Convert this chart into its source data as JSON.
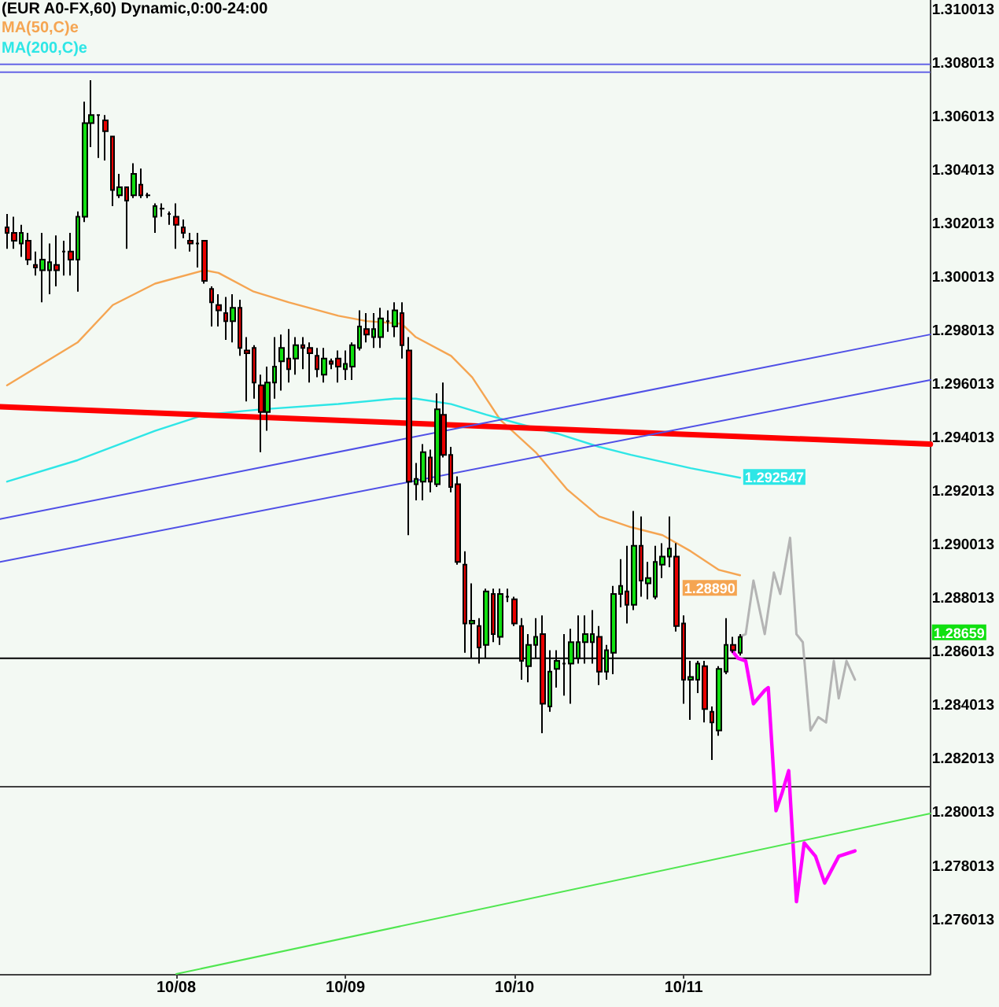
{
  "chart_data": {
    "type": "candlestick",
    "title": "(EUR A0-FX,60) Dynamic,0:00-24:00",
    "legend": "top left",
    "marker": "none",
    "x": [
      "--10-07T00:00",
      "--10-07T01:00",
      "--10-07T02:00",
      "--10-07T03:00",
      "--10-07T04:00",
      "--10-07T05:00",
      "--10-07T06:00",
      "--10-07T07:00",
      "--10-07T08:00",
      "--10-07T09:00",
      "--10-07T10:00",
      "--10-07T11:00",
      "--10-07T12:00",
      "--10-07T13:00",
      "--10-07T14:00",
      "--10-07T15:00",
      "--10-07T16:00",
      "--10-07T17:00",
      "--10-07T18:00",
      "--10-07T19:00",
      "--10-07T20:00",
      "--10-07T21:00",
      "--10-07T22:00",
      "--10-07T23:00",
      "--10-08T00:00",
      "--10-08T01:00",
      "--10-08T02:00",
      "--10-08T03:00",
      "--10-08T04:00",
      "--10-08T05:00",
      "--10-08T06:00",
      "--10-08T07:00",
      "--10-08T08:00",
      "--10-08T09:00",
      "--10-08T10:00",
      "--10-08T11:00",
      "--10-08T12:00",
      "--10-08T13:00",
      "--10-08T14:00",
      "--10-08T15:00",
      "--10-08T16:00",
      "--10-08T17:00",
      "--10-08T18:00",
      "--10-08T19:00",
      "--10-08T20:00",
      "--10-08T21:00",
      "--10-08T22:00",
      "--10-08T23:00",
      "--10-09T00:00",
      "--10-09T01:00",
      "--10-09T02:00",
      "--10-09T03:00",
      "--10-09T04:00",
      "--10-09T05:00",
      "--10-09T06:00",
      "--10-09T07:00",
      "--10-09T08:00",
      "--10-09T09:00",
      "--10-09T10:00",
      "--10-09T11:00",
      "--10-09T12:00",
      "--10-09T13:00",
      "--10-09T14:00",
      "--10-09T15:00",
      "--10-09T16:00",
      "--10-09T17:00",
      "--10-09T18:00",
      "--10-09T19:00",
      "--10-09T20:00",
      "--10-09T21:00",
      "--10-09T22:00",
      "--10-09T23:00",
      "--10-10T00:00",
      "--10-10T01:00",
      "--10-10T02:00",
      "--10-10T03:00",
      "--10-10T04:00",
      "--10-10T05:00",
      "--10-10T06:00",
      "--10-10T07:00",
      "--10-10T08:00",
      "--10-10T09:00",
      "--10-10T10:00",
      "--10-10T11:00",
      "--10-10T12:00",
      "--10-10T13:00",
      "--10-10T14:00",
      "--10-10T15:00",
      "--10-10T16:00",
      "--10-10T17:00",
      "--10-10T18:00",
      "--10-10T19:00",
      "--10-10T20:00",
      "--10-10T21:00",
      "--10-10T22:00",
      "--10-10T23:00",
      "--10-11T00:00",
      "--10-11T01:00",
      "--10-11T02:00",
      "--10-11T03:00",
      "--10-11T04:00",
      "--10-11T05:00",
      "--10-11T06:00",
      "--10-11T07:00",
      "--10-11T08:00"
    ],
    "ohlc": [
      [
        1.3019,
        1.3024,
        1.3011,
        1.3017
      ],
      [
        1.3017,
        1.3023,
        1.3011,
        1.3014
      ],
      [
        1.3013,
        1.302,
        1.3008,
        1.3017
      ],
      [
        1.3014,
        1.3017,
        1.3005,
        1.3007
      ],
      [
        1.3005,
        1.301,
        1.3001,
        1.3004
      ],
      [
        1.3003,
        1.3017,
        1.2991,
        1.3007
      ],
      [
        1.3003,
        1.3013,
        1.2994,
        1.3006
      ],
      [
        1.3005,
        1.3016,
        1.2997,
        1.3003
      ],
      [
        1.301,
        1.3014,
        1.3001,
        1.301
      ],
      [
        1.301,
        1.3017,
        1.3001,
        1.3007
      ],
      [
        1.3007,
        1.3025,
        1.2995,
        1.3023
      ],
      [
        1.3023,
        1.3066,
        1.3021,
        1.3058
      ],
      [
        1.3058,
        1.3074,
        1.3049,
        1.3061
      ],
      [
        1.3061,
        1.3061,
        1.3045,
        1.3061
      ],
      [
        1.3059,
        1.3061,
        1.3044,
        1.3055
      ],
      [
        1.3053,
        1.3053,
        1.3027,
        1.3033
      ],
      [
        1.3031,
        1.3039,
        1.303,
        1.3034
      ],
      [
        1.3034,
        1.3034,
        1.3011,
        1.3029
      ],
      [
        1.3031,
        1.3043,
        1.303,
        1.3039
      ],
      [
        1.3035,
        1.3041,
        1.303,
        1.3031
      ],
      [
        1.3031,
        1.3032,
        1.303,
        1.3031
      ],
      [
        1.3023,
        1.3028,
        1.3017,
        1.3027
      ],
      [
        1.3026,
        1.3028,
        1.3023,
        1.3026
      ],
      [
        1.3024,
        1.3025,
        1.302,
        1.3024
      ],
      [
        1.3023,
        1.3028,
        1.3011,
        1.302
      ],
      [
        1.3019,
        1.3022,
        1.3015,
        1.3017
      ],
      [
        1.3014,
        1.3017,
        1.301,
        1.3013
      ],
      [
        1.3013,
        1.3017,
        1.3004,
        1.3013
      ],
      [
        1.3014,
        1.3014,
        1.2998,
        1.2999
      ],
      [
        1.2996,
        1.2997,
        1.2982,
        1.2991
      ],
      [
        1.299,
        1.2994,
        1.2982,
        1.2988
      ],
      [
        1.2987,
        1.2993,
        1.2977,
        1.2984
      ],
      [
        1.2984,
        1.2994,
        1.2976,
        1.2989
      ],
      [
        1.2989,
        1.2992,
        1.2971,
        1.2974
      ],
      [
        1.2973,
        1.2978,
        1.2954,
        1.2972
      ],
      [
        1.2974,
        1.2975,
        1.2955,
        1.2961
      ],
      [
        1.296,
        1.2964,
        1.2935,
        1.295
      ],
      [
        1.295,
        1.2967,
        1.2943,
        1.2961
      ],
      [
        1.2961,
        1.2978,
        1.2955,
        1.2967
      ],
      [
        1.2969,
        1.2979,
        1.2958,
        1.2974
      ],
      [
        1.297,
        1.2981,
        1.2961,
        1.2966
      ],
      [
        1.297,
        1.2978,
        1.2964,
        1.2975
      ],
      [
        1.2975,
        1.2978,
        1.2966,
        1.2974
      ],
      [
        1.2974,
        1.2976,
        1.2961,
        1.2972
      ],
      [
        1.2971,
        1.2974,
        1.2963,
        1.2966
      ],
      [
        1.2964,
        1.2974,
        1.2961,
        1.297
      ],
      [
        1.2969,
        1.297,
        1.2966,
        1.2968
      ],
      [
        1.297,
        1.2973,
        1.2961,
        1.2967
      ],
      [
        1.2966,
        1.2973,
        1.2962,
        1.2968
      ],
      [
        1.2967,
        1.2976,
        1.2962,
        1.2975
      ],
      [
        1.2974,
        1.2988,
        1.2973,
        1.2982
      ],
      [
        1.2981,
        1.2987,
        1.2976,
        1.2979
      ],
      [
        1.2978,
        1.2987,
        1.2974,
        1.2981
      ],
      [
        1.2978,
        1.2989,
        1.2974,
        1.2985
      ],
      [
        1.2984,
        1.2988,
        1.298,
        1.2984
      ],
      [
        1.2982,
        1.2991,
        1.2978,
        1.2988
      ],
      [
        1.2987,
        1.2991,
        1.297,
        1.2975
      ],
      [
        1.2973,
        1.2978,
        1.2904,
        1.2924
      ],
      [
        1.2923,
        1.2931,
        1.2917,
        1.2925
      ],
      [
        1.2924,
        1.2938,
        1.2917,
        1.2935
      ],
      [
        1.2933,
        1.2936,
        1.292,
        1.2924
      ],
      [
        1.2923,
        1.2957,
        1.2922,
        1.2951
      ],
      [
        1.2949,
        1.2961,
        1.2933,
        1.2934
      ],
      [
        1.2934,
        1.2937,
        1.292,
        1.2922
      ],
      [
        1.2923,
        1.2926,
        1.2893,
        1.2894
      ],
      [
        1.2893,
        1.2898,
        1.286,
        1.2871
      ],
      [
        1.2871,
        1.2886,
        1.2858,
        1.2872
      ],
      [
        1.287,
        1.2873,
        1.2856,
        1.2862
      ],
      [
        1.2863,
        1.2884,
        1.2858,
        1.2883
      ],
      [
        1.2882,
        1.2884,
        1.2864,
        1.2867
      ],
      [
        1.2866,
        1.2884,
        1.2863,
        1.2882
      ],
      [
        1.2881,
        1.2884,
        1.2879,
        1.2881
      ],
      [
        1.288,
        1.2881,
        1.287,
        1.2871
      ],
      [
        1.287,
        1.2873,
        1.285,
        1.2857
      ],
      [
        1.2855,
        1.2867,
        1.2849,
        1.2863
      ],
      [
        1.2863,
        1.2873,
        1.2858,
        1.2866
      ],
      [
        1.2867,
        1.2874,
        1.283,
        1.2841
      ],
      [
        1.284,
        1.2861,
        1.2838,
        1.2853
      ],
      [
        1.2854,
        1.2861,
        1.2847,
        1.2857
      ],
      [
        1.2856,
        1.2867,
        1.2844,
        1.2856
      ],
      [
        1.2856,
        1.2869,
        1.2841,
        1.2864
      ],
      [
        1.2858,
        1.2874,
        1.2856,
        1.2864
      ],
      [
        1.2864,
        1.2874,
        1.2856,
        1.2867
      ],
      [
        1.2864,
        1.2876,
        1.2856,
        1.2867
      ],
      [
        1.2866,
        1.287,
        1.2848,
        1.2853
      ],
      [
        1.2853,
        1.2863,
        1.285,
        1.2861
      ],
      [
        1.286,
        1.2885,
        1.2852,
        1.2882
      ],
      [
        1.2882,
        1.2895,
        1.2877,
        1.2885
      ],
      [
        1.2883,
        1.29,
        1.2871,
        1.2878
      ],
      [
        1.2878,
        1.2913,
        1.2876,
        1.29
      ],
      [
        1.29,
        1.2911,
        1.2881,
        1.2887
      ],
      [
        1.2886,
        1.2894,
        1.288,
        1.2888
      ],
      [
        1.2881,
        1.29,
        1.288,
        1.2894
      ],
      [
        1.2893,
        1.2901,
        1.2888,
        1.2896
      ],
      [
        1.2896,
        1.2911,
        1.2892,
        1.2899
      ],
      [
        1.2896,
        1.2901,
        1.2868,
        1.287
      ],
      [
        1.2871,
        1.2874,
        1.2841,
        1.285
      ],
      [
        1.285,
        1.2857,
        1.2835,
        1.2851
      ],
      [
        1.285,
        1.2857,
        1.2845,
        1.2856
      ],
      [
        1.2855,
        1.2857,
        1.2834,
        1.2839
      ],
      [
        1.2838,
        1.284,
        1.282,
        1.2834
      ],
      [
        1.2831,
        1.2855,
        1.2829,
        1.2854
      ],
      [
        1.2853,
        1.2873,
        1.2852,
        1.2863
      ],
      [
        1.2863,
        1.2866,
        1.286,
        1.2861
      ],
      [
        1.286,
        1.2867,
        1.2859,
        1.28659
      ]
    ],
    "colors": [
      "#e80000",
      "#e80000",
      "#10e010",
      "#e80000",
      "#e80000",
      "#10e010",
      "#10e010",
      "#e80000",
      "#000000",
      "#e80000",
      "#10e010",
      "#10e010",
      "#10e010",
      "#000000",
      "#e80000",
      "#e80000",
      "#10e010",
      "#e80000",
      "#10e010",
      "#e80000",
      "#000000",
      "#10e010",
      "#000000",
      "#000000",
      "#e80000",
      "#e80000",
      "#e80000",
      "#000000",
      "#e80000",
      "#e80000",
      "#e80000",
      "#e80000",
      "#10e010",
      "#e80000",
      "#e80000",
      "#e80000",
      "#e80000",
      "#10e010",
      "#10e010",
      "#10e010",
      "#e80000",
      "#10e010",
      "#e80000",
      "#e80000",
      "#e80000",
      "#10e010",
      "#e80000",
      "#e80000",
      "#10e010",
      "#10e010",
      "#10e010",
      "#e80000",
      "#10e010",
      "#10e010",
      "#000000",
      "#10e010",
      "#e80000",
      "#e80000",
      "#10e010",
      "#10e010",
      "#e80000",
      "#10e010",
      "#e80000",
      "#e80000",
      "#e80000",
      "#e80000",
      "#10e010",
      "#e80000",
      "#10e010",
      "#e80000",
      "#10e010",
      "#000000",
      "#e80000",
      "#e80000",
      "#10e010",
      "#10e010",
      "#e80000",
      "#10e010",
      "#10e010",
      "#000000",
      "#10e010",
      "#10e010",
      "#10e010",
      "#10e010",
      "#e80000",
      "#10e010",
      "#10e010",
      "#10e010",
      "#e80000",
      "#10e010",
      "#e80000",
      "#10e010",
      "#10e010",
      "#10e010",
      "#10e010",
      "#e80000",
      "#e80000",
      "#10e010",
      "#10e010",
      "#e80000",
      "#e80000",
      "#10e010",
      "#10e010",
      "#e80000",
      "#10e010"
    ],
    "value_labels": [
      null,
      null,
      null,
      null,
      null,
      null,
      null,
      null,
      null,
      null,
      null,
      null,
      null,
      null,
      null,
      null,
      null,
      null,
      null,
      null,
      null,
      null,
      null,
      null,
      null,
      null,
      null,
      null,
      null,
      null,
      null,
      null,
      null,
      null,
      null,
      null,
      null,
      null,
      null,
      null,
      null,
      null,
      null,
      null,
      null,
      null,
      null,
      null,
      null,
      null,
      null,
      null,
      null,
      null,
      null,
      null,
      null,
      null,
      null,
      null,
      null,
      null,
      null,
      null,
      null,
      null,
      null,
      null,
      null,
      null,
      null,
      null,
      null,
      null,
      null,
      null,
      null,
      null,
      null,
      null,
      null,
      null,
      null,
      null,
      null,
      null,
      null,
      null,
      null,
      null,
      null,
      null,
      null,
      null,
      null,
      null,
      null,
      null,
      null,
      null,
      null,
      null,
      null,
      null,
      "1.28659"
    ],
    "series": [
      {
        "type": "line",
        "name": "MA(50,C)e",
        "color": "#f5a552",
        "x": [
          "--10-07T00:00",
          "--10-07T10:00",
          "--10-07T15:00",
          "--10-07T21:00",
          "--10-08T04:00",
          "--10-08T06:00",
          "--10-08T11:00",
          "--10-08T16:00",
          "--10-08T23:00",
          "--10-09T03:00",
          "--10-09T08:00",
          "--10-09T10:00",
          "--10-09T15:00",
          "--10-09T18:00",
          "--10-09T22:00",
          "--10-10T03:00",
          "--10-10T07:30",
          "--10-10T12:00",
          "--10-10T16:30",
          "--10-10T21:00",
          "--10-11T01:00",
          "--10-11T05:00",
          "--10-11T08:00"
        ],
        "values": [
          1.296,
          1.2976,
          1.299,
          1.2998,
          1.3003,
          1.3002,
          1.2995,
          1.2991,
          1.2986,
          1.2984,
          1.2983,
          1.2978,
          1.2971,
          1.2963,
          1.2947,
          1.2935,
          1.2921,
          1.2911,
          1.2907,
          1.2904,
          1.2898,
          1.2891,
          1.2889
        ],
        "value_labels": [
          null,
          null,
          null,
          null,
          null,
          null,
          null,
          null,
          null,
          null,
          null,
          null,
          null,
          null,
          null,
          null,
          null,
          null,
          null,
          null,
          null,
          null,
          "1.28890"
        ]
      },
      {
        "type": "line",
        "name": "MA(200,C)e",
        "color": "#2ee6e6",
        "x": [
          "--10-07T00:00",
          "--10-07T10:00",
          "--10-07T21:00",
          "--10-08T04:00",
          "--10-08T12:00",
          "--10-08T23:00",
          "--10-09T07:00",
          "--10-09T10:00",
          "--10-09T15:00",
          "--10-09T20:00",
          "--10-10T01:30",
          "--10-10T06:00",
          "--10-10T12:00",
          "--10-10T16:30",
          "--10-11T01:00",
          "--10-11T08:00"
        ],
        "values": [
          1.2924,
          1.2932,
          1.2943,
          1.2949,
          1.2951,
          1.2953,
          1.2955,
          1.2955,
          1.2953,
          1.2949,
          1.2945,
          1.2942,
          1.2937,
          1.2934,
          1.2929,
          1.292547
        ],
        "value_labels": [
          null,
          null,
          null,
          null,
          null,
          null,
          null,
          null,
          null,
          null,
          null,
          null,
          null,
          null,
          null,
          "1.292547"
        ]
      },
      {
        "type": "line",
        "color": "#b4b4b4",
        "x": [
          "--10-11T07:54",
          "--10-11T08:48",
          "--10-11T09:54",
          "--10-11T11:30",
          "--10-11T12:48",
          "--10-11T13:42",
          "--10-11T15:06",
          "--10-11T16:00",
          "--10-11T16:54",
          "--10-11T18:00",
          "--10-11T19:06",
          "--10-11T20:12",
          "--10-11T21:18",
          "--10-11T22:00",
          "--10-11T23:06",
          "--10-12T00:18"
        ],
        "values": [
          1.2866,
          1.2867,
          1.2887,
          1.2867,
          1.289,
          1.2882,
          1.2903,
          1.2867,
          1.2864,
          1.2831,
          1.2836,
          1.2834,
          1.2857,
          1.2843,
          1.2857,
          1.285
        ]
      },
      {
        "type": "line",
        "color": "#ff00ff",
        "x": [
          "--10-11T06:48",
          "--10-11T07:42",
          "--10-11T08:48",
          "--10-11T09:54",
          "--10-11T11:30",
          "--10-11T12:00",
          "--10-11T13:06",
          "--10-11T14:00",
          "--10-11T14:54",
          "--10-11T16:00",
          "--10-11T17:06",
          "--10-11T18:42",
          "--10-11T20:00",
          "--10-11T22:00",
          "--10-12T00:18"
        ],
        "values": [
          1.2861,
          1.2858,
          1.2857,
          1.2841,
          1.2846,
          1.2847,
          1.2801,
          1.2808,
          1.2816,
          1.2767,
          1.2789,
          1.2784,
          1.2774,
          1.2784,
          1.2786
        ]
      },
      {
        "type": "line",
        "color": "#ff0000",
        "x": [
          "--10-06T23:00",
          "--10-12T11:00"
        ],
        "values": [
          1.2952,
          1.2938
        ]
      },
      {
        "type": "line",
        "color": "#5050e6",
        "x": [
          "--10-06T23:00",
          "--10-12T11:00"
        ],
        "values": [
          1.291,
          1.2979
        ]
      },
      {
        "type": "line",
        "color": "#5050e6",
        "x": [
          "--10-06T23:00",
          "--10-12T11:00"
        ],
        "values": [
          1.2894,
          1.2962
        ]
      },
      {
        "type": "line",
        "color": "#50e650",
        "x": [
          "--10-08T00:00",
          "--10-12T11:00"
        ],
        "values": [
          1.274,
          1.28
        ]
      }
    ],
    "ref_lines": [
      {
        "axis": "y",
        "value": 1.308,
        "color": "#6464e6"
      },
      {
        "axis": "y",
        "value": 1.3077,
        "color": "#6464e6"
      },
      {
        "axis": "y",
        "value": 1.2858,
        "color": "#000000"
      },
      {
        "axis": "y",
        "value": 1.281,
        "color": "#404040"
      }
    ],
    "xlim": [
      "--10-06T23:00",
      "--10-12T11:00"
    ],
    "xticks": [
      {
        "value": "--10-08",
        "label": "10/08"
      },
      {
        "value": "--10-09",
        "label": "10/09"
      },
      {
        "value": "--10-10",
        "label": "10/10"
      },
      {
        "value": "--10-11",
        "label": "10/11"
      }
    ],
    "ylim": [
      1.274,
      1.3104
    ],
    "yticks": [
      1.276013,
      1.278013,
      1.280013,
      1.282013,
      1.284013,
      1.286013,
      1.288013,
      1.290013,
      1.292013,
      1.294013,
      1.296013,
      1.298013,
      1.300013,
      1.302013,
      1.304013,
      1.306013,
      1.308013,
      1.310013
    ]
  }
}
